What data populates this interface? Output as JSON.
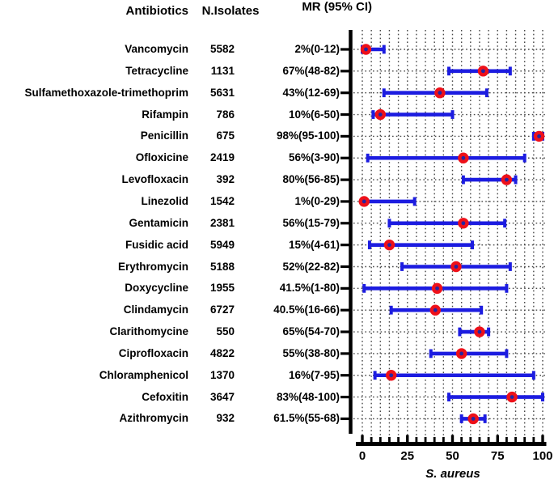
{
  "header": {
    "antibiotics": "Antibiotics",
    "n_isolates": "N.Isolates",
    "mr_ci": "MR (95% CI)"
  },
  "chart_data": {
    "type": "scatter",
    "subtype": "forest-plot-with-ci",
    "title": "MR (95% CI)",
    "xlabel": "S. aureus",
    "xlim": [
      0,
      100
    ],
    "xticks": [
      0,
      25,
      50,
      75,
      100
    ],
    "minor_tick_step": 5,
    "grid": "dotted",
    "legend": "none",
    "rows": [
      {
        "antibiotic": "Vancomycin",
        "n_isolates": "5582",
        "mr_label": "2%(0-12)",
        "mr": 2,
        "ci_low": 0,
        "ci_high": 12
      },
      {
        "antibiotic": "Tetracycline",
        "n_isolates": "1131",
        "mr_label": "67%(48-82)",
        "mr": 67,
        "ci_low": 48,
        "ci_high": 82
      },
      {
        "antibiotic": "Sulfamethoxazole-trimethoprim",
        "n_isolates": "5631",
        "mr_label": "43%(12-69)",
        "mr": 43,
        "ci_low": 12,
        "ci_high": 69
      },
      {
        "antibiotic": "Rifampin",
        "n_isolates": "786",
        "mr_label": "10%(6-50)",
        "mr": 10,
        "ci_low": 6,
        "ci_high": 50
      },
      {
        "antibiotic": "Penicillin",
        "n_isolates": "675",
        "mr_label": "98%(95-100)",
        "mr": 98,
        "ci_low": 95,
        "ci_high": 100
      },
      {
        "antibiotic": "Ofloxicine",
        "n_isolates": "2419",
        "mr_label": "56%(3-90)",
        "mr": 56,
        "ci_low": 3,
        "ci_high": 90
      },
      {
        "antibiotic": "Levofloxacin",
        "n_isolates": "392",
        "mr_label": "80%(56-85)",
        "mr": 80,
        "ci_low": 56,
        "ci_high": 85
      },
      {
        "antibiotic": "Linezolid",
        "n_isolates": "1542",
        "mr_label": "1%(0-29)",
        "mr": 1,
        "ci_low": 0,
        "ci_high": 29
      },
      {
        "antibiotic": "Gentamicin",
        "n_isolates": "2381",
        "mr_label": "56%(15-79)",
        "mr": 56,
        "ci_low": 15,
        "ci_high": 79
      },
      {
        "antibiotic": "Fusidic acid",
        "n_isolates": "5949",
        "mr_label": "15%(4-61)",
        "mr": 15,
        "ci_low": 4,
        "ci_high": 61
      },
      {
        "antibiotic": "Erythromycin",
        "n_isolates": "5188",
        "mr_label": "52%(22-82)",
        "mr": 52,
        "ci_low": 22,
        "ci_high": 82
      },
      {
        "antibiotic": "Doxycycline",
        "n_isolates": "1955",
        "mr_label": "41.5%(1-80)",
        "mr": 41.5,
        "ci_low": 1,
        "ci_high": 80
      },
      {
        "antibiotic": "Clindamycin",
        "n_isolates": "6727",
        "mr_label": "40.5%(16-66)",
        "mr": 40.5,
        "ci_low": 16,
        "ci_high": 66
      },
      {
        "antibiotic": "Clarithomycine",
        "n_isolates": "550",
        "mr_label": "65%(54-70)",
        "mr": 65,
        "ci_low": 54,
        "ci_high": 70
      },
      {
        "antibiotic": "Ciprofloxacin",
        "n_isolates": "4822",
        "mr_label": "55%(38-80)",
        "mr": 55,
        "ci_low": 38,
        "ci_high": 80
      },
      {
        "antibiotic": "Chloramphenicol",
        "n_isolates": "1370",
        "mr_label": "16%(7-95)",
        "mr": 16,
        "ci_low": 7,
        "ci_high": 95
      },
      {
        "antibiotic": "Cefoxitin",
        "n_isolates": "3647",
        "mr_label": "83%(48-100)",
        "mr": 83,
        "ci_low": 48,
        "ci_high": 100
      },
      {
        "antibiotic": "Azithromycin",
        "n_isolates": "932",
        "mr_label": "61.5%(55-68)",
        "mr": 61.5,
        "ci_low": 55,
        "ci_high": 68
      }
    ]
  },
  "colors": {
    "background": "#ffffff",
    "text": "#000000",
    "axis": "#000000",
    "grid": "#474747",
    "ci_bar": "#1c1ce0",
    "marker": "#ee1019",
    "marker_center": "#2525a0"
  }
}
